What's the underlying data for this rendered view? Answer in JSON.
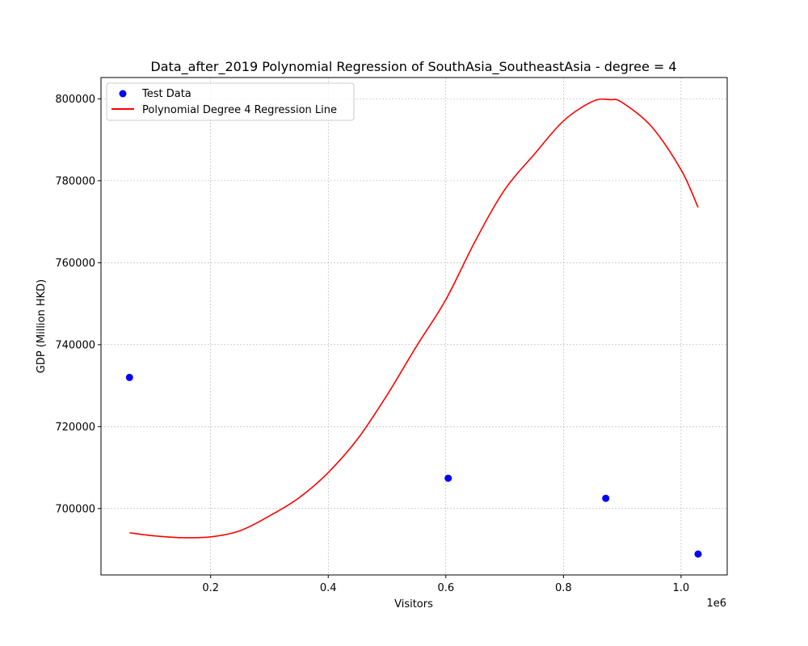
{
  "chart_data": {
    "type": "scatter",
    "title": "Data_after_2019 Polynomial Regression of SouthAsia_SoutheastAsia - degree = 4",
    "xlabel": "Visitors",
    "ylabel": "GDP (Million HKD)",
    "x_offset_label": "1e6",
    "xlim": [
      0.0135,
      1.0785
    ],
    "ylim": [
      683800,
      805200
    ],
    "x_ticks": [
      0.2,
      0.4,
      0.6,
      0.8,
      1.0
    ],
    "x_tick_labels": [
      "0.2",
      "0.4",
      "0.6",
      "0.8",
      "1.0"
    ],
    "y_ticks": [
      700000,
      720000,
      740000,
      760000,
      780000,
      800000
    ],
    "y_tick_labels": [
      "700000",
      "720000",
      "740000",
      "760000",
      "780000",
      "800000"
    ],
    "grid": true,
    "legend_position": "upper-left",
    "series": [
      {
        "name": "Test Data",
        "kind": "scatter",
        "color": "#0000ff",
        "x": [
          0.062,
          0.604,
          0.872,
          1.029
        ],
        "y": [
          732000,
          707400,
          702500,
          688900
        ]
      },
      {
        "name": "Polynomial Degree 4 Regression Line",
        "kind": "line",
        "color": "#ff0000",
        "x": [
          0.062,
          0.1,
          0.15,
          0.2,
          0.25,
          0.3,
          0.35,
          0.4,
          0.45,
          0.5,
          0.55,
          0.6,
          0.65,
          0.7,
          0.75,
          0.8,
          0.85,
          0.88,
          0.9,
          0.95,
          1.0,
          1.029
        ],
        "y": [
          694100,
          693400,
          692900,
          693100,
          694600,
          698200,
          702600,
          708800,
          717000,
          727700,
          739600,
          751000,
          765300,
          777800,
          786400,
          794600,
          799400,
          799800,
          799100,
          793200,
          782700,
          773500
        ]
      }
    ]
  }
}
